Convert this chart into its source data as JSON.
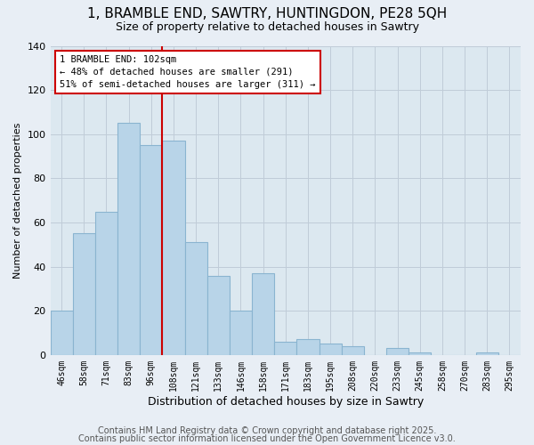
{
  "title": "1, BRAMBLE END, SAWTRY, HUNTINGDON, PE28 5QH",
  "subtitle": "Size of property relative to detached houses in Sawtry",
  "xlabel": "Distribution of detached houses by size in Sawtry",
  "ylabel": "Number of detached properties",
  "categories": [
    "46sqm",
    "58sqm",
    "71sqm",
    "83sqm",
    "96sqm",
    "108sqm",
    "121sqm",
    "133sqm",
    "146sqm",
    "158sqm",
    "171sqm",
    "183sqm",
    "195sqm",
    "208sqm",
    "220sqm",
    "233sqm",
    "245sqm",
    "258sqm",
    "270sqm",
    "283sqm",
    "295sqm"
  ],
  "values": [
    20,
    55,
    65,
    105,
    95,
    97,
    51,
    36,
    20,
    37,
    6,
    7,
    5,
    4,
    0,
    3,
    1,
    0,
    0,
    1,
    0
  ],
  "bar_color": "#b8d4e8",
  "bar_edge_color": "#8ab4d0",
  "vline_color": "#cc0000",
  "annotation_text": "1 BRAMBLE END: 102sqm\n← 48% of detached houses are smaller (291)\n51% of semi-detached houses are larger (311) →",
  "annotation_box_color": "#ffffff",
  "annotation_box_edge": "#cc0000",
  "ylim": [
    0,
    140
  ],
  "yticks": [
    0,
    20,
    40,
    60,
    80,
    100,
    120,
    140
  ],
  "footer1": "Contains HM Land Registry data © Crown copyright and database right 2025.",
  "footer2": "Contains public sector information licensed under the Open Government Licence v3.0.",
  "bg_color": "#e8eef5",
  "plot_bg_color": "#dce8f0",
  "grid_color": "#c0ccd8",
  "title_fontsize": 11,
  "subtitle_fontsize": 9,
  "footer_fontsize": 7
}
